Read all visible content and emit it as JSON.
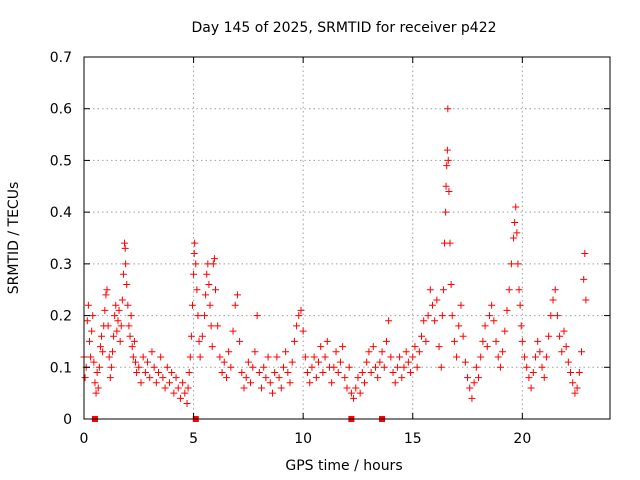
{
  "chart_data": {
    "type": "scatter",
    "title": "Day 145 of 2025, SRMTID for receiver p422",
    "xlabel": "GPS time / hours",
    "ylabel": "SRMTID / TECUs",
    "xlim": [
      0,
      24
    ],
    "ylim": [
      0,
      0.7
    ],
    "xticks": [
      0,
      5,
      10,
      15,
      20
    ],
    "yticks": [
      0,
      0.1,
      0.2,
      0.3,
      0.4,
      0.5,
      0.6,
      0.7
    ],
    "xtick_labels": [
      "0",
      "5",
      "10",
      "15",
      "20"
    ],
    "ytick_labels": [
      "0",
      "0.1",
      "0.2",
      "0.3",
      "0.4",
      "0.5",
      "0.6",
      "0.7"
    ],
    "grid": true,
    "marker": "+",
    "color": "#ff0000",
    "series": [
      {
        "name": "SRMTID",
        "points": [
          [
            0.0,
            0.12
          ],
          [
            0.05,
            0.08
          ],
          [
            0.1,
            0.1
          ],
          [
            0.15,
            0.19
          ],
          [
            0.2,
            0.22
          ],
          [
            0.25,
            0.15
          ],
          [
            0.3,
            0.12
          ],
          [
            0.35,
            0.17
          ],
          [
            0.4,
            0.2
          ],
          [
            0.45,
            0.11
          ],
          [
            0.5,
            0.07
          ],
          [
            0.55,
            0.05
          ],
          [
            0.6,
            0.09
          ],
          [
            0.65,
            0.06
          ],
          [
            0.7,
            0.1
          ],
          [
            0.75,
            0.14
          ],
          [
            0.8,
            0.16
          ],
          [
            0.85,
            0.13
          ],
          [
            0.9,
            0.18
          ],
          [
            0.95,
            0.21
          ],
          [
            1.0,
            0.24
          ],
          [
            1.05,
            0.25
          ],
          [
            1.1,
            0.18
          ],
          [
            1.15,
            0.12
          ],
          [
            1.2,
            0.08
          ],
          [
            1.25,
            0.1
          ],
          [
            1.3,
            0.13
          ],
          [
            1.35,
            0.16
          ],
          [
            1.4,
            0.2
          ],
          [
            1.45,
            0.22
          ],
          [
            1.5,
            0.17
          ],
          [
            1.55,
            0.19
          ],
          [
            1.6,
            0.21
          ],
          [
            1.65,
            0.15
          ],
          [
            1.7,
            0.18
          ],
          [
            1.75,
            0.23
          ],
          [
            1.8,
            0.28
          ],
          [
            1.85,
            0.34
          ],
          [
            1.88,
            0.33
          ],
          [
            1.9,
            0.3
          ],
          [
            1.95,
            0.26
          ],
          [
            2.0,
            0.22
          ],
          [
            2.05,
            0.18
          ],
          [
            2.1,
            0.16
          ],
          [
            2.15,
            0.2
          ],
          [
            2.2,
            0.14
          ],
          [
            2.25,
            0.12
          ],
          [
            2.3,
            0.15
          ],
          [
            2.35,
            0.11
          ],
          [
            2.4,
            0.09
          ],
          [
            2.5,
            0.1
          ],
          [
            2.6,
            0.07
          ],
          [
            2.7,
            0.12
          ],
          [
            2.8,
            0.09
          ],
          [
            2.9,
            0.11
          ],
          [
            3.0,
            0.08
          ],
          [
            3.1,
            0.13
          ],
          [
            3.2,
            0.1
          ],
          [
            3.3,
            0.07
          ],
          [
            3.4,
            0.09
          ],
          [
            3.5,
            0.12
          ],
          [
            3.6,
            0.08
          ],
          [
            3.7,
            0.06
          ],
          [
            3.8,
            0.1
          ],
          [
            3.9,
            0.07
          ],
          [
            4.0,
            0.09
          ],
          [
            4.1,
            0.05
          ],
          [
            4.2,
            0.08
          ],
          [
            4.3,
            0.06
          ],
          [
            4.4,
            0.04
          ],
          [
            4.5,
            0.07
          ],
          [
            4.6,
            0.05
          ],
          [
            4.7,
            0.03
          ],
          [
            4.75,
            0.06
          ],
          [
            4.8,
            0.09
          ],
          [
            4.85,
            0.12
          ],
          [
            4.9,
            0.16
          ],
          [
            4.95,
            0.22
          ],
          [
            5.0,
            0.28
          ],
          [
            5.03,
            0.32
          ],
          [
            5.05,
            0.34
          ],
          [
            5.1,
            0.3
          ],
          [
            5.15,
            0.25
          ],
          [
            5.2,
            0.2
          ],
          [
            5.25,
            0.15
          ],
          [
            5.3,
            0.12
          ],
          [
            5.4,
            0.16
          ],
          [
            5.5,
            0.2
          ],
          [
            5.55,
            0.24
          ],
          [
            5.6,
            0.28
          ],
          [
            5.65,
            0.3
          ],
          [
            5.7,
            0.26
          ],
          [
            5.75,
            0.22
          ],
          [
            5.8,
            0.18
          ],
          [
            5.85,
            0.14
          ],
          [
            5.9,
            0.3
          ],
          [
            5.95,
            0.31
          ],
          [
            6.0,
            0.25
          ],
          [
            6.1,
            0.18
          ],
          [
            6.2,
            0.12
          ],
          [
            6.3,
            0.09
          ],
          [
            6.4,
            0.11
          ],
          [
            6.5,
            0.08
          ],
          [
            6.6,
            0.13
          ],
          [
            6.7,
            0.1
          ],
          [
            6.8,
            0.17
          ],
          [
            6.9,
            0.22
          ],
          [
            7.0,
            0.24
          ],
          [
            7.1,
            0.15
          ],
          [
            7.2,
            0.09
          ],
          [
            7.3,
            0.06
          ],
          [
            7.4,
            0.08
          ],
          [
            7.5,
            0.11
          ],
          [
            7.6,
            0.07
          ],
          [
            7.7,
            0.1
          ],
          [
            7.8,
            0.13
          ],
          [
            7.9,
            0.2
          ],
          [
            8.0,
            0.09
          ],
          [
            8.1,
            0.06
          ],
          [
            8.2,
            0.1
          ],
          [
            8.3,
            0.08
          ],
          [
            8.4,
            0.12
          ],
          [
            8.5,
            0.07
          ],
          [
            8.6,
            0.05
          ],
          [
            8.7,
            0.09
          ],
          [
            8.8,
            0.12
          ],
          [
            8.9,
            0.08
          ],
          [
            9.0,
            0.06
          ],
          [
            9.1,
            0.1
          ],
          [
            9.2,
            0.13
          ],
          [
            9.3,
            0.09
          ],
          [
            9.4,
            0.07
          ],
          [
            9.5,
            0.11
          ],
          [
            9.6,
            0.15
          ],
          [
            9.7,
            0.18
          ],
          [
            9.8,
            0.2
          ],
          [
            9.9,
            0.21
          ],
          [
            10.0,
            0.17
          ],
          [
            10.1,
            0.12
          ],
          [
            10.2,
            0.09
          ],
          [
            10.3,
            0.07
          ],
          [
            10.4,
            0.1
          ],
          [
            10.5,
            0.12
          ],
          [
            10.6,
            0.08
          ],
          [
            10.7,
            0.11
          ],
          [
            10.8,
            0.14
          ],
          [
            10.9,
            0.09
          ],
          [
            11.0,
            0.12
          ],
          [
            11.1,
            0.15
          ],
          [
            11.2,
            0.1
          ],
          [
            11.3,
            0.07
          ],
          [
            11.4,
            0.1
          ],
          [
            11.5,
            0.13
          ],
          [
            11.6,
            0.09
          ],
          [
            11.7,
            0.11
          ],
          [
            11.8,
            0.14
          ],
          [
            11.9,
            0.08
          ],
          [
            12.0,
            0.06
          ],
          [
            12.1,
            0.1
          ],
          [
            12.2,
            0.05
          ],
          [
            12.3,
            0.04
          ],
          [
            12.4,
            0.06
          ],
          [
            12.5,
            0.08
          ],
          [
            12.6,
            0.05
          ],
          [
            12.7,
            0.09
          ],
          [
            12.8,
            0.07
          ],
          [
            12.9,
            0.11
          ],
          [
            13.0,
            0.13
          ],
          [
            13.1,
            0.09
          ],
          [
            13.2,
            0.14
          ],
          [
            13.3,
            0.1
          ],
          [
            13.4,
            0.08
          ],
          [
            13.5,
            0.11
          ],
          [
            13.6,
            0.13
          ],
          [
            13.7,
            0.1
          ],
          [
            13.8,
            0.15
          ],
          [
            13.9,
            0.19
          ],
          [
            14.0,
            0.12
          ],
          [
            14.1,
            0.09
          ],
          [
            14.2,
            0.07
          ],
          [
            14.3,
            0.1
          ],
          [
            14.4,
            0.12
          ],
          [
            14.5,
            0.08
          ],
          [
            14.6,
            0.1
          ],
          [
            14.7,
            0.13
          ],
          [
            14.8,
            0.11
          ],
          [
            14.9,
            0.09
          ],
          [
            15.0,
            0.12
          ],
          [
            15.1,
            0.14
          ],
          [
            15.2,
            0.1
          ],
          [
            15.3,
            0.13
          ],
          [
            15.4,
            0.16
          ],
          [
            15.5,
            0.19
          ],
          [
            15.6,
            0.15
          ],
          [
            15.7,
            0.2
          ],
          [
            15.8,
            0.25
          ],
          [
            15.9,
            0.22
          ],
          [
            16.0,
            0.19
          ],
          [
            16.1,
            0.23
          ],
          [
            16.2,
            0.14
          ],
          [
            16.3,
            0.1
          ],
          [
            16.35,
            0.2
          ],
          [
            16.4,
            0.25
          ],
          [
            16.45,
            0.34
          ],
          [
            16.5,
            0.4
          ],
          [
            16.52,
            0.45
          ],
          [
            16.55,
            0.49
          ],
          [
            16.58,
            0.52
          ],
          [
            16.6,
            0.6
          ],
          [
            16.62,
            0.5
          ],
          [
            16.65,
            0.44
          ],
          [
            16.7,
            0.34
          ],
          [
            16.75,
            0.26
          ],
          [
            16.8,
            0.2
          ],
          [
            16.9,
            0.15
          ],
          [
            17.0,
            0.12
          ],
          [
            17.1,
            0.18
          ],
          [
            17.2,
            0.22
          ],
          [
            17.3,
            0.16
          ],
          [
            17.4,
            0.11
          ],
          [
            17.5,
            0.08
          ],
          [
            17.6,
            0.06
          ],
          [
            17.7,
            0.04
          ],
          [
            17.8,
            0.07
          ],
          [
            17.9,
            0.1
          ],
          [
            18.0,
            0.08
          ],
          [
            18.1,
            0.12
          ],
          [
            18.2,
            0.15
          ],
          [
            18.3,
            0.18
          ],
          [
            18.4,
            0.14
          ],
          [
            18.5,
            0.2
          ],
          [
            18.6,
            0.22
          ],
          [
            18.7,
            0.19
          ],
          [
            18.8,
            0.15
          ],
          [
            18.9,
            0.12
          ],
          [
            19.0,
            0.1
          ],
          [
            19.1,
            0.13
          ],
          [
            19.2,
            0.17
          ],
          [
            19.3,
            0.21
          ],
          [
            19.4,
            0.25
          ],
          [
            19.5,
            0.3
          ],
          [
            19.6,
            0.35
          ],
          [
            19.65,
            0.38
          ],
          [
            19.7,
            0.41
          ],
          [
            19.75,
            0.36
          ],
          [
            19.8,
            0.3
          ],
          [
            19.85,
            0.25
          ],
          [
            19.9,
            0.22
          ],
          [
            19.95,
            0.18
          ],
          [
            20.0,
            0.15
          ],
          [
            20.1,
            0.12
          ],
          [
            20.2,
            0.1
          ],
          [
            20.3,
            0.08
          ],
          [
            20.4,
            0.06
          ],
          [
            20.5,
            0.09
          ],
          [
            20.6,
            0.12
          ],
          [
            20.7,
            0.15
          ],
          [
            20.8,
            0.13
          ],
          [
            20.9,
            0.1
          ],
          [
            21.0,
            0.08
          ],
          [
            21.1,
            0.12
          ],
          [
            21.2,
            0.16
          ],
          [
            21.3,
            0.2
          ],
          [
            21.4,
            0.23
          ],
          [
            21.5,
            0.25
          ],
          [
            21.6,
            0.2
          ],
          [
            21.7,
            0.16
          ],
          [
            21.8,
            0.13
          ],
          [
            21.9,
            0.17
          ],
          [
            22.0,
            0.14
          ],
          [
            22.1,
            0.11
          ],
          [
            22.2,
            0.09
          ],
          [
            22.3,
            0.07
          ],
          [
            22.4,
            0.05
          ],
          [
            22.5,
            0.06
          ],
          [
            22.6,
            0.09
          ],
          [
            22.7,
            0.13
          ],
          [
            22.8,
            0.27
          ],
          [
            22.85,
            0.32
          ],
          [
            22.9,
            0.23
          ]
        ]
      }
    ],
    "bottom_markers_x": [
      0.5,
      5.1,
      12.2,
      13.6
    ]
  }
}
